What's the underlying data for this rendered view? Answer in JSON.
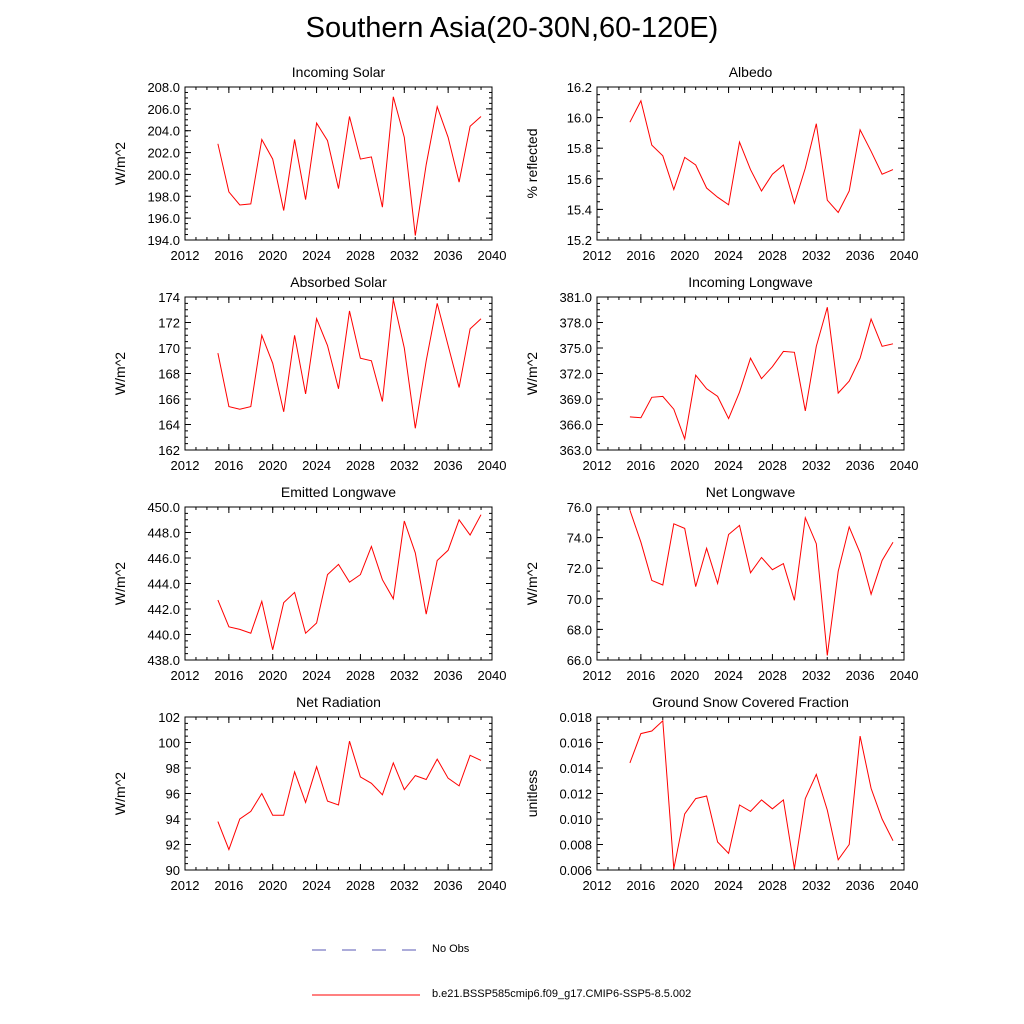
{
  "title": "Southern Asia(20-30N,60-120E)",
  "colors": {
    "model": "#ff0000",
    "obs": "#5a5ab4",
    "axis": "#000000"
  },
  "chart_data": [
    {
      "type": "line",
      "title": "Incoming Solar",
      "ylabel": "W/m^2",
      "xlim": [
        2012,
        2040
      ],
      "xticks": [
        "2012",
        "2016",
        "2020",
        "2024",
        "2028",
        "2032",
        "2036",
        "2040"
      ],
      "ylim": [
        194,
        208
      ],
      "yticks": [
        "194.0",
        "196.0",
        "198.0",
        "200.0",
        "202.0",
        "204.0",
        "206.0",
        "208.0"
      ],
      "series": [
        {
          "name": "b.e21.BSSP585cmip6.f09_g17.CMIP6-SSP5-8.5.002",
          "x": [
            2015,
            2016,
            2017,
            2018,
            2019,
            2020,
            2021,
            2022,
            2023,
            2024,
            2025,
            2026,
            2027,
            2028,
            2029,
            2030,
            2031,
            2032,
            2033,
            2034,
            2035,
            2036,
            2037,
            2038,
            2039
          ],
          "values": [
            202.8,
            198.4,
            197.2,
            197.3,
            203.2,
            201.4,
            196.7,
            203.2,
            197.7,
            204.7,
            203.1,
            198.7,
            205.3,
            201.4,
            201.6,
            197.0,
            207.1,
            203.4,
            194.4,
            200.9,
            206.2,
            203.4,
            199.3,
            204.4,
            205.3
          ]
        }
      ]
    },
    {
      "type": "line",
      "title": "Albedo",
      "ylabel": "% reflected",
      "xlim": [
        2012,
        2040
      ],
      "xticks": [
        "2012",
        "2016",
        "2020",
        "2024",
        "2028",
        "2032",
        "2036",
        "2040"
      ],
      "ylim": [
        15.2,
        16.2
      ],
      "yticks": [
        "15.2",
        "15.4",
        "15.6",
        "15.8",
        "16.0",
        "16.2"
      ],
      "series": [
        {
          "name": "b.e21.BSSP585cmip6.f09_g17.CMIP6-SSP5-8.5.002",
          "x": [
            2015,
            2016,
            2017,
            2018,
            2019,
            2020,
            2021,
            2022,
            2023,
            2024,
            2025,
            2026,
            2027,
            2028,
            2029,
            2030,
            2031,
            2032,
            2033,
            2034,
            2035,
            2036,
            2037,
            2038,
            2039
          ],
          "values": [
            15.97,
            16.11,
            15.82,
            15.75,
            15.53,
            15.74,
            15.69,
            15.54,
            15.48,
            15.43,
            15.84,
            15.66,
            15.52,
            15.63,
            15.69,
            15.44,
            15.67,
            15.96,
            15.46,
            15.38,
            15.52,
            15.92,
            15.78,
            15.63,
            15.66
          ]
        }
      ]
    },
    {
      "type": "line",
      "title": "Absorbed Solar",
      "ylabel": "W/m^2",
      "xlim": [
        2012,
        2040
      ],
      "xticks": [
        "2012",
        "2016",
        "2020",
        "2024",
        "2028",
        "2032",
        "2036",
        "2040"
      ],
      "ylim": [
        162,
        174
      ],
      "yticks": [
        "162",
        "164",
        "166",
        "168",
        "170",
        "172",
        "174"
      ],
      "series": [
        {
          "name": "b.e21.BSSP585cmip6.f09_g17.CMIP6-SSP5-8.5.002",
          "x": [
            2015,
            2016,
            2017,
            2018,
            2019,
            2020,
            2021,
            2022,
            2023,
            2024,
            2025,
            2026,
            2027,
            2028,
            2029,
            2030,
            2031,
            2032,
            2033,
            2034,
            2035,
            2036,
            2037,
            2038,
            2039
          ],
          "values": [
            169.6,
            165.4,
            165.2,
            165.4,
            171.0,
            168.8,
            165.0,
            171.0,
            166.4,
            172.3,
            170.2,
            166.8,
            172.9,
            169.2,
            169.0,
            165.8,
            173.8,
            170.0,
            163.7,
            169.0,
            173.5,
            170.2,
            166.9,
            171.5,
            172.3
          ]
        }
      ]
    },
    {
      "type": "line",
      "title": "Incoming Longwave",
      "ylabel": "W/m^2",
      "xlim": [
        2012,
        2040
      ],
      "xticks": [
        "2012",
        "2016",
        "2020",
        "2024",
        "2028",
        "2032",
        "2036",
        "2040"
      ],
      "ylim": [
        363,
        381
      ],
      "yticks": [
        "363.0",
        "366.0",
        "369.0",
        "372.0",
        "375.0",
        "378.0",
        "381.0"
      ],
      "series": [
        {
          "name": "b.e21.BSSP585cmip6.f09_g17.CMIP6-SSP5-8.5.002",
          "x": [
            2015,
            2016,
            2017,
            2018,
            2019,
            2020,
            2021,
            2022,
            2023,
            2024,
            2025,
            2026,
            2027,
            2028,
            2029,
            2030,
            2031,
            2032,
            2033,
            2034,
            2035,
            2036,
            2037,
            2038,
            2039
          ],
          "values": [
            366.9,
            366.8,
            369.2,
            369.3,
            367.8,
            364.3,
            371.8,
            370.2,
            369.3,
            366.7,
            369.8,
            373.8,
            371.4,
            372.8,
            374.6,
            374.5,
            367.6,
            375.2,
            379.8,
            369.7,
            371.1,
            373.8,
            378.4,
            375.2,
            375.5
          ]
        }
      ]
    },
    {
      "type": "line",
      "title": "Emitted Longwave",
      "ylabel": "W/m^2",
      "xlim": [
        2012,
        2040
      ],
      "xticks": [
        "2012",
        "2016",
        "2020",
        "2024",
        "2028",
        "2032",
        "2036",
        "2040"
      ],
      "ylim": [
        438,
        450
      ],
      "yticks": [
        "438.0",
        "440.0",
        "442.0",
        "444.0",
        "446.0",
        "448.0",
        "450.0"
      ],
      "series": [
        {
          "name": "b.e21.BSSP585cmip6.f09_g17.CMIP6-SSP5-8.5.002",
          "x": [
            2015,
            2016,
            2017,
            2018,
            2019,
            2020,
            2021,
            2022,
            2023,
            2024,
            2025,
            2026,
            2027,
            2028,
            2029,
            2030,
            2031,
            2032,
            2033,
            2034,
            2035,
            2036,
            2037,
            2038,
            2039
          ],
          "values": [
            442.7,
            440.6,
            440.4,
            440.1,
            442.6,
            438.8,
            442.5,
            443.3,
            440.1,
            440.9,
            444.7,
            445.5,
            444.1,
            444.7,
            446.9,
            444.3,
            442.8,
            448.9,
            446.4,
            441.6,
            445.8,
            446.6,
            449.0,
            447.8,
            449.4
          ]
        }
      ]
    },
    {
      "type": "line",
      "title": "Net Longwave",
      "ylabel": "W/m^2",
      "xlim": [
        2012,
        2040
      ],
      "xticks": [
        "2012",
        "2016",
        "2020",
        "2024",
        "2028",
        "2032",
        "2036",
        "2040"
      ],
      "ylim": [
        66,
        76
      ],
      "yticks": [
        "66.0",
        "68.0",
        "70.0",
        "72.0",
        "74.0",
        "76.0"
      ],
      "series": [
        {
          "name": "b.e21.BSSP585cmip6.f09_g17.CMIP6-SSP5-8.5.002",
          "x": [
            2015,
            2016,
            2017,
            2018,
            2019,
            2020,
            2021,
            2022,
            2023,
            2024,
            2025,
            2026,
            2027,
            2028,
            2029,
            2030,
            2031,
            2032,
            2033,
            2034,
            2035,
            2036,
            2037,
            2038,
            2039
          ],
          "values": [
            75.8,
            73.7,
            71.2,
            70.9,
            74.9,
            74.6,
            70.8,
            73.3,
            71.0,
            74.2,
            74.8,
            71.7,
            72.7,
            71.9,
            72.3,
            69.9,
            75.3,
            73.6,
            66.3,
            71.8,
            74.7,
            73.0,
            70.3,
            72.5,
            73.7
          ]
        }
      ]
    },
    {
      "type": "line",
      "title": "Net Radiation",
      "ylabel": "W/m^2",
      "xlim": [
        2012,
        2040
      ],
      "xticks": [
        "2012",
        "2016",
        "2020",
        "2024",
        "2028",
        "2032",
        "2036",
        "2040"
      ],
      "ylim": [
        90,
        102
      ],
      "yticks": [
        "90",
        "92",
        "94",
        "96",
        "98",
        "100",
        "102"
      ],
      "series": [
        {
          "name": "b.e21.BSSP585cmip6.f09_g17.CMIP6-SSP5-8.5.002",
          "x": [
            2015,
            2016,
            2017,
            2018,
            2019,
            2020,
            2021,
            2022,
            2023,
            2024,
            2025,
            2026,
            2027,
            2028,
            2029,
            2030,
            2031,
            2032,
            2033,
            2034,
            2035,
            2036,
            2037,
            2038,
            2039
          ],
          "values": [
            93.8,
            91.6,
            94.0,
            94.6,
            96.0,
            94.3,
            94.3,
            97.7,
            95.3,
            98.1,
            95.4,
            95.1,
            100.1,
            97.3,
            96.8,
            95.9,
            98.4,
            96.3,
            97.4,
            97.1,
            98.7,
            97.2,
            96.6,
            99.0,
            98.6
          ]
        }
      ]
    },
    {
      "type": "line",
      "title": "Ground Snow Covered Fraction",
      "ylabel": "unitless",
      "xlim": [
        2012,
        2040
      ],
      "xticks": [
        "2012",
        "2016",
        "2020",
        "2024",
        "2028",
        "2032",
        "2036",
        "2040"
      ],
      "ylim": [
        0.006,
        0.018
      ],
      "yticks": [
        "0.006",
        "0.008",
        "0.010",
        "0.012",
        "0.014",
        "0.016",
        "0.018"
      ],
      "series": [
        {
          "name": "b.e21.BSSP585cmip6.f09_g17.CMIP6-SSP5-8.5.002",
          "x": [
            2015,
            2016,
            2017,
            2018,
            2019,
            2020,
            2021,
            2022,
            2023,
            2024,
            2025,
            2026,
            2027,
            2028,
            2029,
            2030,
            2031,
            2032,
            2033,
            2034,
            2035,
            2036,
            2037,
            2038,
            2039
          ],
          "values": [
            0.0144,
            0.0167,
            0.0169,
            0.0177,
            0.0061,
            0.0104,
            0.0116,
            0.0118,
            0.0082,
            0.0073,
            0.0111,
            0.0106,
            0.0115,
            0.0108,
            0.0115,
            0.0061,
            0.0116,
            0.0135,
            0.0107,
            0.0068,
            0.008,
            0.0165,
            0.0124,
            0.01,
            0.0083
          ]
        }
      ]
    }
  ],
  "legend": {
    "obs_label": "No Obs",
    "model_label": "b.e21.BSSP585cmip6.f09_g17.CMIP6-SSP5-8.5.002"
  }
}
